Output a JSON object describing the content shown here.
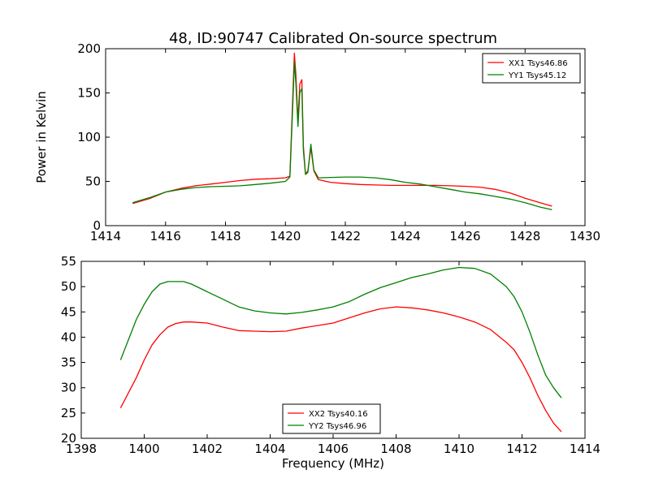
{
  "chart_data": [
    {
      "type": "line",
      "title": "48, ID:90747 Calibrated On-source spectrum",
      "xlabel": "",
      "ylabel": "Power in Kelvin",
      "xlim": [
        1414,
        1430
      ],
      "ylim": [
        0,
        200
      ],
      "xticks": [
        1414,
        1416,
        1418,
        1420,
        1422,
        1424,
        1426,
        1428,
        1430
      ],
      "yticks": [
        0,
        50,
        100,
        150,
        200
      ],
      "grid": false,
      "legend_position": "top-right",
      "series": [
        {
          "name": "XX1 Tsys46.86",
          "color": "#ff0000",
          "x": [
            1414.9,
            1415.5,
            1416.0,
            1416.5,
            1417.0,
            1417.5,
            1418.0,
            1418.5,
            1419.0,
            1419.5,
            1420.0,
            1420.15,
            1420.25,
            1420.3,
            1420.35,
            1420.42,
            1420.48,
            1420.55,
            1420.6,
            1420.67,
            1420.75,
            1420.85,
            1420.95,
            1421.1,
            1421.5,
            1422.0,
            1422.5,
            1423.0,
            1423.5,
            1424.0,
            1424.5,
            1425.0,
            1425.5,
            1426.0,
            1426.5,
            1427.0,
            1427.5,
            1428.0,
            1428.5,
            1428.9
          ],
          "y": [
            25,
            31,
            38,
            42,
            45,
            47,
            49,
            51,
            52.5,
            53,
            54,
            56,
            150,
            195,
            170,
            118,
            160,
            165,
            90,
            58,
            62,
            88,
            62,
            52,
            49,
            47.5,
            46.5,
            46,
            45.5,
            45.5,
            45.5,
            45.5,
            45,
            44.5,
            43.5,
            41,
            37,
            31,
            26,
            22
          ]
        },
        {
          "name": "YY1 Tsys45.12",
          "color": "#008000",
          "x": [
            1414.9,
            1415.5,
            1416.0,
            1416.5,
            1417.0,
            1417.5,
            1418.0,
            1418.5,
            1419.0,
            1419.5,
            1420.0,
            1420.15,
            1420.25,
            1420.3,
            1420.35,
            1420.42,
            1420.48,
            1420.55,
            1420.6,
            1420.67,
            1420.75,
            1420.85,
            1420.95,
            1421.1,
            1421.5,
            1422.0,
            1422.5,
            1423.0,
            1423.5,
            1424.0,
            1424.5,
            1425.0,
            1425.5,
            1426.0,
            1426.5,
            1427.0,
            1427.5,
            1428.0,
            1428.5,
            1428.9
          ],
          "y": [
            26,
            32,
            38,
            41,
            43,
            44,
            44.5,
            45,
            46.5,
            48,
            50,
            55,
            140,
            185,
            160,
            112,
            150,
            155,
            85,
            58,
            60,
            92,
            63,
            54,
            54.5,
            55,
            55,
            54,
            52,
            49,
            47,
            44,
            41,
            38,
            36,
            33,
            30,
            26,
            21,
            18
          ]
        }
      ]
    },
    {
      "type": "line",
      "title": "",
      "xlabel": "Frequency (MHz)",
      "ylabel": "",
      "xlim": [
        1398,
        1414
      ],
      "ylim": [
        20,
        55
      ],
      "xticks": [
        1398,
        1400,
        1402,
        1404,
        1406,
        1408,
        1410,
        1412,
        1414
      ],
      "yticks": [
        20,
        25,
        30,
        35,
        40,
        45,
        50,
        55
      ],
      "grid": false,
      "legend_position": "bottom-center",
      "series": [
        {
          "name": "XX2 Tsys40.16",
          "color": "#ff0000",
          "x": [
            1399.25,
            1399.5,
            1399.75,
            1400.0,
            1400.25,
            1400.5,
            1400.75,
            1401.0,
            1401.25,
            1401.5,
            1402.0,
            1402.5,
            1403.0,
            1403.5,
            1404.0,
            1404.5,
            1405.0,
            1405.5,
            1406.0,
            1406.5,
            1407.0,
            1407.5,
            1408.0,
            1408.5,
            1409.0,
            1409.5,
            1410.0,
            1410.5,
            1411.0,
            1411.5,
            1411.75,
            1412.0,
            1412.25,
            1412.5,
            1412.75,
            1413.0,
            1413.25
          ],
          "y": [
            26,
            29,
            32,
            35.5,
            38.5,
            40.5,
            42,
            42.7,
            43,
            43,
            42.8,
            42,
            41.3,
            41.2,
            41.1,
            41.2,
            41.8,
            42.3,
            42.8,
            43.8,
            44.8,
            45.6,
            46,
            45.8,
            45.4,
            44.8,
            44,
            43,
            41.5,
            39,
            37.5,
            35,
            32,
            28.5,
            25.5,
            23,
            21.3
          ]
        },
        {
          "name": "YY2 Tsys46.96",
          "color": "#008000",
          "x": [
            1399.25,
            1399.5,
            1399.75,
            1400.0,
            1400.25,
            1400.5,
            1400.75,
            1401.0,
            1401.25,
            1401.5,
            1402.0,
            1402.5,
            1403.0,
            1403.5,
            1404.0,
            1404.5,
            1405.0,
            1405.5,
            1406.0,
            1406.5,
            1407.0,
            1407.5,
            1408.0,
            1408.5,
            1409.0,
            1409.5,
            1410.0,
            1410.5,
            1411.0,
            1411.5,
            1411.75,
            1412.0,
            1412.25,
            1412.5,
            1412.75,
            1413.0,
            1413.25
          ],
          "y": [
            35.5,
            39.5,
            43.5,
            46.5,
            49,
            50.5,
            51,
            51,
            51,
            50.5,
            49,
            47.5,
            46,
            45.2,
            44.8,
            44.6,
            44.9,
            45.4,
            46,
            47,
            48.5,
            49.8,
            50.8,
            51.8,
            52.5,
            53.3,
            53.8,
            53.6,
            52.5,
            50,
            48,
            45,
            41,
            36.5,
            32.5,
            30,
            28
          ]
        }
      ]
    }
  ]
}
